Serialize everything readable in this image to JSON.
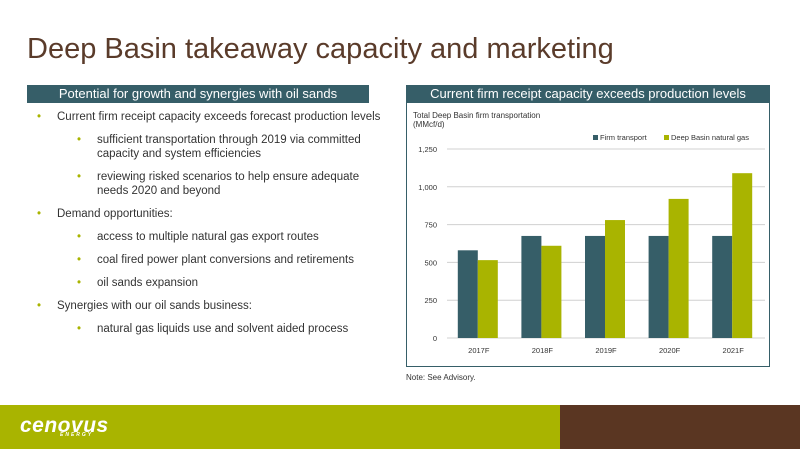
{
  "slide": {
    "title": "Deep Basin takeaway capacity and marketing",
    "left_header": "Potential for growth and synergies with oil sands",
    "right_header": "Current firm receipt capacity exceeds production levels",
    "note": "Note: See Advisory."
  },
  "bullets": [
    {
      "level": 1,
      "text": "Current firm receipt capacity exceeds forecast production levels"
    },
    {
      "level": 2,
      "text": "sufficient transportation through 2019 via committed capacity and system efficiencies"
    },
    {
      "level": 2,
      "text": "reviewing risked scenarios to help ensure adequate needs 2020 and beyond"
    },
    {
      "level": 1,
      "text": "Demand opportunities:"
    },
    {
      "level": 2,
      "text": "access to multiple natural gas export routes"
    },
    {
      "level": 2,
      "text": "coal fired power plant conversions and retirements"
    },
    {
      "level": 2,
      "text": "oil sands expansion"
    },
    {
      "level": 1,
      "text": "Synergies with our oil sands business:"
    },
    {
      "level": 2,
      "text": "natural gas liquids use and solvent aided process"
    }
  ],
  "logo": {
    "text": "cenovus",
    "subtext": "ENERGY"
  },
  "colors": {
    "firm": "#365e68",
    "gas": "#a9b400",
    "title": "#5a3b2a",
    "footer_green": "#a9b400",
    "footer_brown": "#5a3622"
  },
  "chart_data": {
    "type": "bar",
    "title": "Total Deep Basin firm transportation",
    "ylabel": "(MMcf/d)",
    "xlabel": "",
    "categories": [
      "2017F",
      "2018F",
      "2019F",
      "2020F",
      "2021F"
    ],
    "series": [
      {
        "name": "Firm transport",
        "values": [
          580,
          675,
          675,
          675,
          675
        ]
      },
      {
        "name": "Deep Basin natural gas",
        "values": [
          515,
          610,
          780,
          920,
          1090
        ]
      }
    ],
    "ylim": [
      0,
      1250
    ],
    "yticks": [
      0,
      250,
      500,
      750,
      1000,
      1250
    ],
    "ytick_labels": [
      "0",
      "250",
      "500",
      "750",
      "1,000",
      "1,250"
    ],
    "grid": true,
    "legend": "top-right"
  }
}
